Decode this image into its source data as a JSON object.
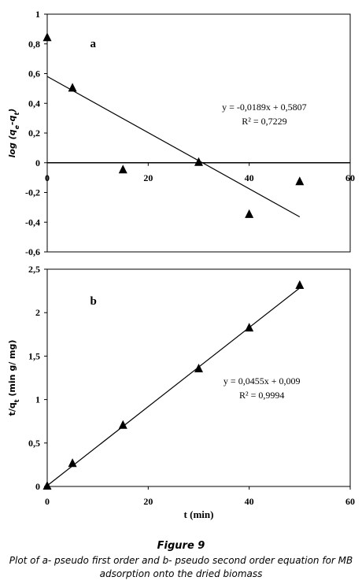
{
  "chart_data": [
    {
      "type": "scatter",
      "panel_label": "a",
      "ylabel": "log (q_e-q_t)",
      "xlim": [
        0,
        60
      ],
      "ylim": [
        -0.6,
        1
      ],
      "x_ticks": [
        "0",
        "20",
        "40",
        "60"
      ],
      "y_ticks": [
        "1",
        "0,8",
        "0,6",
        "0,4",
        "0,2",
        "0",
        "-0,2",
        "-0,4",
        "-0,6"
      ],
      "series": [
        {
          "points": [
            {
              "x": 0,
              "y": 0.84
            },
            {
              "x": 5,
              "y": 0.5
            },
            {
              "x": 15,
              "y": -0.05
            },
            {
              "x": 30,
              "y": 0.0
            },
            {
              "x": 40,
              "y": -0.35
            },
            {
              "x": 50,
              "y": -0.13
            }
          ]
        }
      ],
      "fit": {
        "slope": -0.0189,
        "intercept": 0.5807,
        "x_range": [
          0,
          50
        ]
      },
      "equation": "y = -0,0189x + 0,5807",
      "r2": "R² = 0,7229",
      "zero_line": true
    },
    {
      "type": "scatter",
      "panel_label": "b",
      "xlabel": "t (min)",
      "ylabel": "t/q_t (min g/ mg)",
      "xlim": [
        0,
        60
      ],
      "ylim": [
        0,
        2.5
      ],
      "x_ticks": [
        "0",
        "20",
        "40",
        "60"
      ],
      "y_ticks": [
        "2,5",
        "2",
        "1,5",
        "1",
        "0,5",
        "0"
      ],
      "series": [
        {
          "points": [
            {
              "x": 0,
              "y": 0.0
            },
            {
              "x": 5,
              "y": 0.26
            },
            {
              "x": 15,
              "y": 0.7
            },
            {
              "x": 30,
              "y": 1.35
            },
            {
              "x": 40,
              "y": 1.82
            },
            {
              "x": 50,
              "y": 2.31
            }
          ]
        }
      ],
      "fit": {
        "slope": 0.0455,
        "intercept": 0.009,
        "x_range": [
          0,
          50
        ]
      },
      "equation": "y = 0,0455x + 0,009",
      "r2": "R² = 0,9994"
    }
  ],
  "caption": {
    "title": "Figure 9",
    "line1": "Plot of a- pseudo first order and b- pseudo second order equation for MB",
    "line2": "adsorption onto the dried biomass"
  }
}
